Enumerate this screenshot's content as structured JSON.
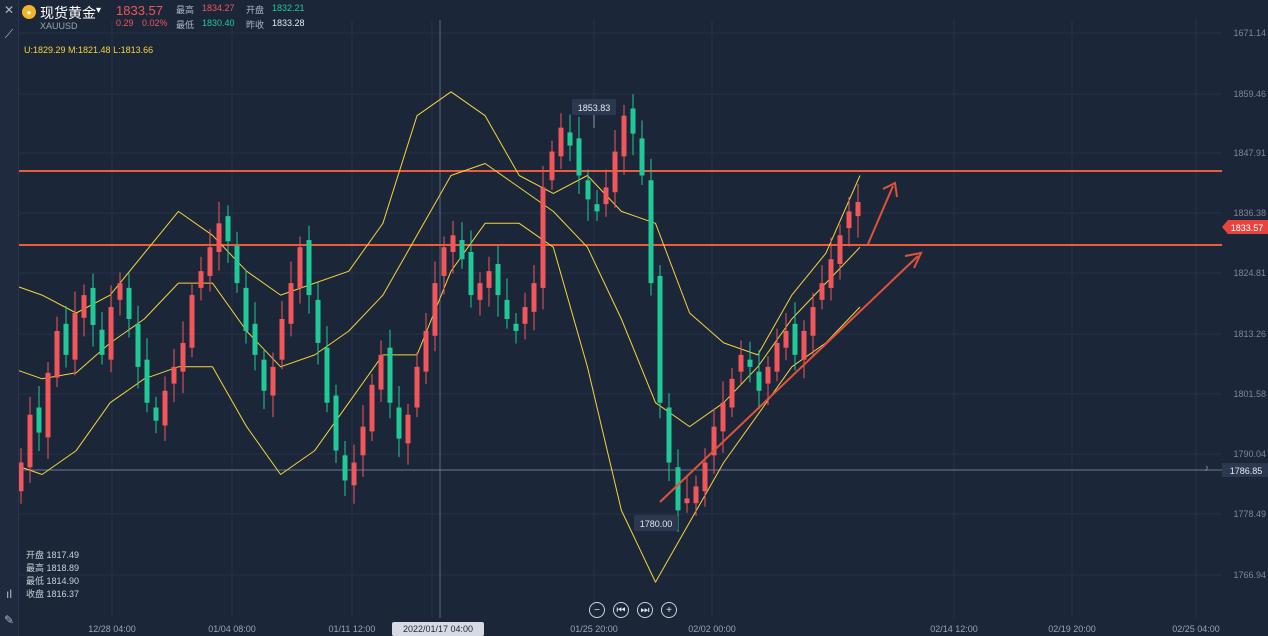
{
  "header": {
    "title": "现货黄金",
    "symbol": "XAUUSD",
    "price": "1833.57",
    "change": "0.29",
    "change_pct": "0.02%",
    "high_label": "最高",
    "high": "1834.27",
    "open_label": "开盘",
    "open": "1832.21",
    "low_label": "最低",
    "low": "1830.40",
    "prev_label": "昨收",
    "prev_close": "1833.28"
  },
  "bollinger": "U:1829.29  M:1821.48  L:1813.66",
  "ohlc_box": {
    "open": "开盘 1817.49",
    "high": "最高 1818.89",
    "low": "最低 1814.90",
    "close": "收盘 1816.37"
  },
  "nav_buttons": [
    "−",
    "⏮",
    "⏭",
    "+"
  ],
  "colors": {
    "bg": "#1c2639",
    "up": "#f0565a",
    "down": "#20c997",
    "band": "#f5d33a",
    "level": "#ec5b3a",
    "accent": "#e0533a"
  },
  "chart_data": {
    "type": "candlestick",
    "ylim": [
      1764,
      1674
    ],
    "y_ticks": [
      "1671.14",
      "1859.46",
      "1847.91",
      "1836.38",
      "1824.81",
      "1813.26",
      "1801.58",
      "1790.04",
      "1778.49",
      "1766.94"
    ],
    "x_ticks": [
      "12/28 04:00",
      "01/04 08:00",
      "01/11 12:00",
      "2022/01/17 04:00",
      "01/25 20:00",
      "02/02 00:00",
      "02/14 12:00",
      "02/19 20:00",
      "02/25 04:00"
    ],
    "cursor_time": "2022/01/17 04:00",
    "current_price": "1833.57",
    "crosshair_price": "1786.85",
    "annotations": {
      "peak": "1853.83",
      "trough": "1780.00"
    },
    "horizontal_levels": [
      1844,
      1831
    ],
    "closes": [
      1786,
      1790,
      1798,
      1795,
      1805,
      1812,
      1808,
      1815,
      1818,
      1813,
      1808,
      1816,
      1820,
      1814,
      1806,
      1800,
      1797,
      1802,
      1806,
      1810,
      1818,
      1822,
      1826,
      1830,
      1827,
      1820,
      1812,
      1808,
      1802,
      1806,
      1814,
      1820,
      1826,
      1818,
      1810,
      1800,
      1792,
      1787,
      1790,
      1796,
      1803,
      1808,
      1800,
      1794,
      1798,
      1806,
      1812,
      1820,
      1826,
      1828,
      1824,
      1818,
      1820,
      1822,
      1818,
      1814,
      1812,
      1816,
      1820,
      1836,
      1842,
      1846,
      1843,
      1838,
      1834,
      1832,
      1836,
      1842,
      1848,
      1845,
      1838,
      1820,
      1800,
      1790,
      1782,
      1784,
      1786,
      1790,
      1796,
      1800,
      1804,
      1808,
      1806,
      1802,
      1806,
      1810,
      1812,
      1808,
      1812,
      1816,
      1820,
      1824,
      1828,
      1832,
      1833.57
    ],
    "bands": {
      "upper": [
        1820,
        1818,
        1815,
        1818,
        1825,
        1832,
        1828,
        1822,
        1818,
        1820,
        1822,
        1830,
        1848,
        1852,
        1848,
        1838,
        1835,
        1838,
        1832,
        1830,
        1815,
        1810,
        1808,
        1818,
        1825,
        1838
      ],
      "middle": [
        1806,
        1804,
        1805,
        1810,
        1814,
        1820,
        1820,
        1812,
        1806,
        1808,
        1812,
        1818,
        1828,
        1838,
        1840,
        1836,
        1832,
        1826,
        1814,
        1800,
        1796,
        1800,
        1806,
        1814,
        1820,
        1826
      ],
      "lower": [
        1790,
        1788,
        1792,
        1800,
        1804,
        1806,
        1806,
        1796,
        1788,
        1792,
        1800,
        1808,
        1808,
        1822,
        1830,
        1830,
        1826,
        1806,
        1782,
        1770,
        1780,
        1790,
        1798,
        1806,
        1810,
        1816
      ]
    }
  }
}
